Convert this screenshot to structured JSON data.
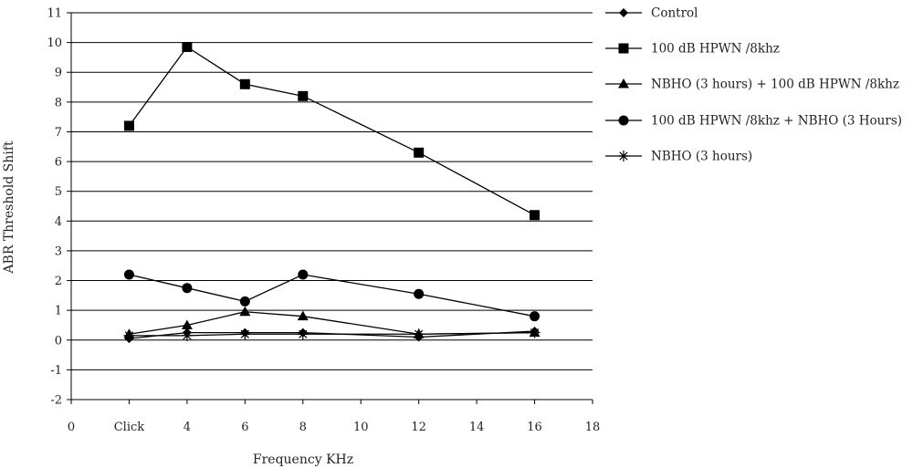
{
  "chart_data": {
    "type": "line",
    "title": "",
    "xlabel": "Frequency KHz",
    "ylabel": "ABR Threshold Shift",
    "xlim": [
      0,
      18
    ],
    "ylim": [
      -2,
      11
    ],
    "x_ticks": [
      {
        "value": 0,
        "label": "0"
      },
      {
        "value": 2,
        "label": "Click"
      },
      {
        "value": 4,
        "label": "4"
      },
      {
        "value": 6,
        "label": "6"
      },
      {
        "value": 8,
        "label": "8"
      },
      {
        "value": 10,
        "label": "10"
      },
      {
        "value": 12,
        "label": "12"
      },
      {
        "value": 14,
        "label": "14"
      },
      {
        "value": 16,
        "label": "16"
      },
      {
        "value": 18,
        "label": "18"
      }
    ],
    "y_ticks": [
      -2,
      -1,
      0,
      1,
      2,
      3,
      4,
      5,
      6,
      7,
      8,
      9,
      10,
      11
    ],
    "grid": "horizontal",
    "legend_position": "right",
    "x": [
      "Click",
      "4",
      "6",
      "8",
      "12",
      "16"
    ],
    "series": [
      {
        "name": "Control",
        "marker": "diamond",
        "values": [
          0.05,
          0.25,
          0.25,
          0.25,
          0.1,
          0.3
        ]
      },
      {
        "name": "100 dB HPWN /8khz",
        "marker": "square",
        "values": [
          7.2,
          9.85,
          8.6,
          8.2,
          6.3,
          4.2
        ]
      },
      {
        "name": "NBHO (3 hours) + 100 dB HPWN /8khz",
        "marker": "triangle",
        "values": [
          0.2,
          0.5,
          0.95,
          0.8,
          0.2,
          0.25
        ]
      },
      {
        "name": "100 dB HPWN /8khz + NBHO (3 Hours)",
        "marker": "circle",
        "values": [
          2.2,
          1.75,
          1.3,
          2.2,
          1.55,
          0.8
        ]
      },
      {
        "name": "NBHO (3 hours)",
        "marker": "asterisk",
        "values": [
          0.15,
          0.15,
          0.2,
          0.2,
          0.2,
          0.25
        ]
      }
    ],
    "colors": {
      "line": "#000000",
      "grid": "#000000",
      "text": "#222222"
    }
  }
}
